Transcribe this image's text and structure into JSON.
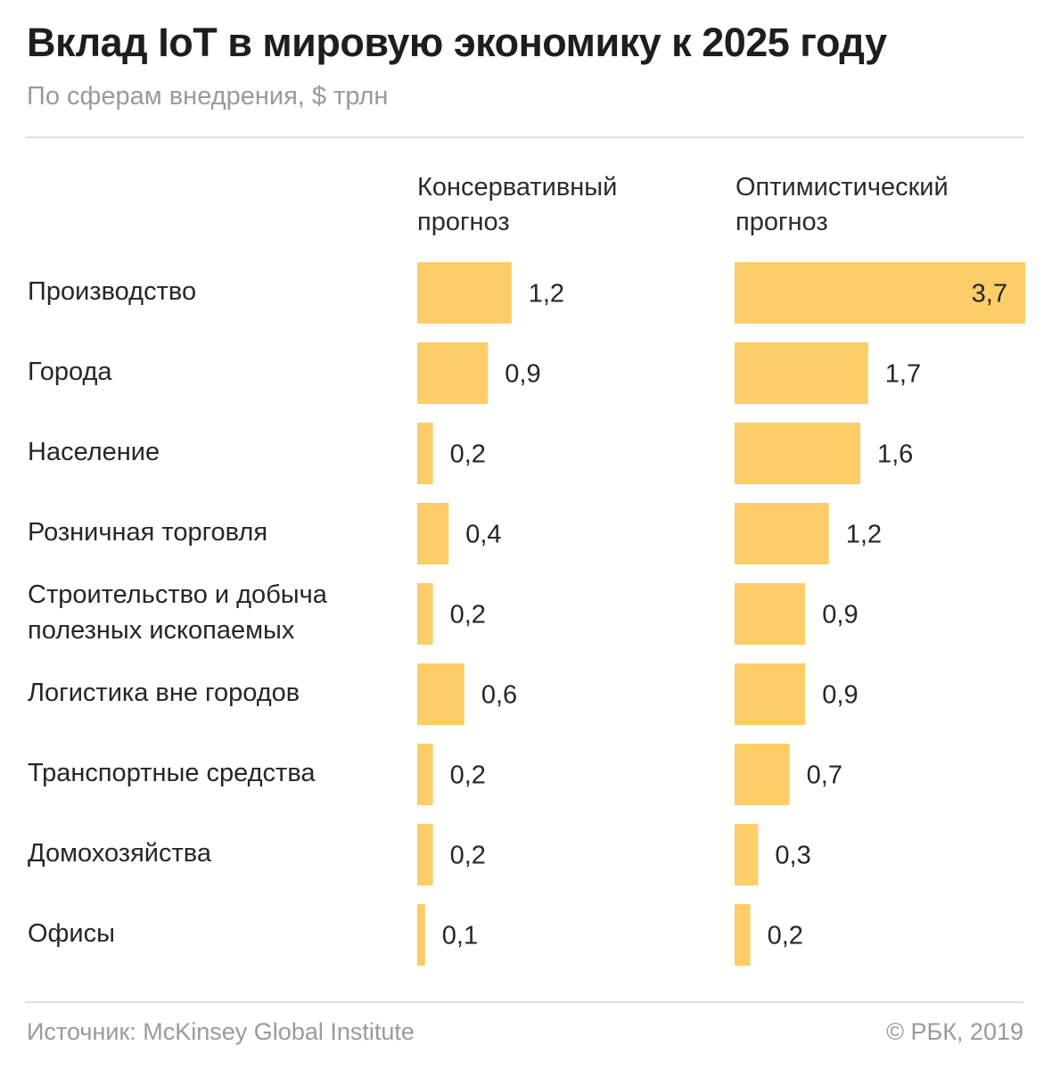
{
  "title": "Вклад IoT в мировую экономику к 2025 году",
  "subtitle": "По сферам внедрения, $ трлн",
  "columns": [
    {
      "line1": "Консервативный",
      "line2": "прогноз"
    },
    {
      "line1": "Оптимистический",
      "line2": "прогноз"
    }
  ],
  "footer": {
    "source": "Источник: McKinsey Global Institute",
    "copyright": "© РБК, 2019"
  },
  "colors": {
    "bar": "#fdcd68",
    "text": "#262626",
    "muted": "#9a9a9a",
    "rule": "#dedede"
  },
  "chart_data": {
    "type": "bar",
    "orientation": "horizontal",
    "title": "Вклад IoT в мировую экономику к 2025 году",
    "subtitle": "По сферам внедрения, $ трлн",
    "categories": [
      [
        "Производство"
      ],
      [
        "Города"
      ],
      [
        "Население"
      ],
      [
        "Розничная торговля"
      ],
      [
        "Строительство и добыча",
        "полезных ископаемых"
      ],
      [
        "Логистика вне городов"
      ],
      [
        "Транспортные средства"
      ],
      [
        "Домохозяйства"
      ],
      [
        "Офисы"
      ]
    ],
    "series": [
      {
        "name": "Консервативный прогноз",
        "values": [
          1.2,
          0.9,
          0.2,
          0.4,
          0.2,
          0.6,
          0.2,
          0.2,
          0.1
        ],
        "labels": [
          "1,2",
          "0,9",
          "0,2",
          "0,4",
          "0,2",
          "0,6",
          "0,2",
          "0,2",
          "0,1"
        ]
      },
      {
        "name": "Оптимистический прогноз",
        "values": [
          3.7,
          1.7,
          1.6,
          1.2,
          0.9,
          0.9,
          0.7,
          0.3,
          0.2
        ],
        "labels": [
          "3,7",
          "1,7",
          "1,6",
          "1,2",
          "0,9",
          "0,9",
          "0,7",
          "0,3",
          "0,2"
        ]
      }
    ],
    "xlim": [
      0,
      3.7
    ],
    "grid": false,
    "legend": "none"
  }
}
